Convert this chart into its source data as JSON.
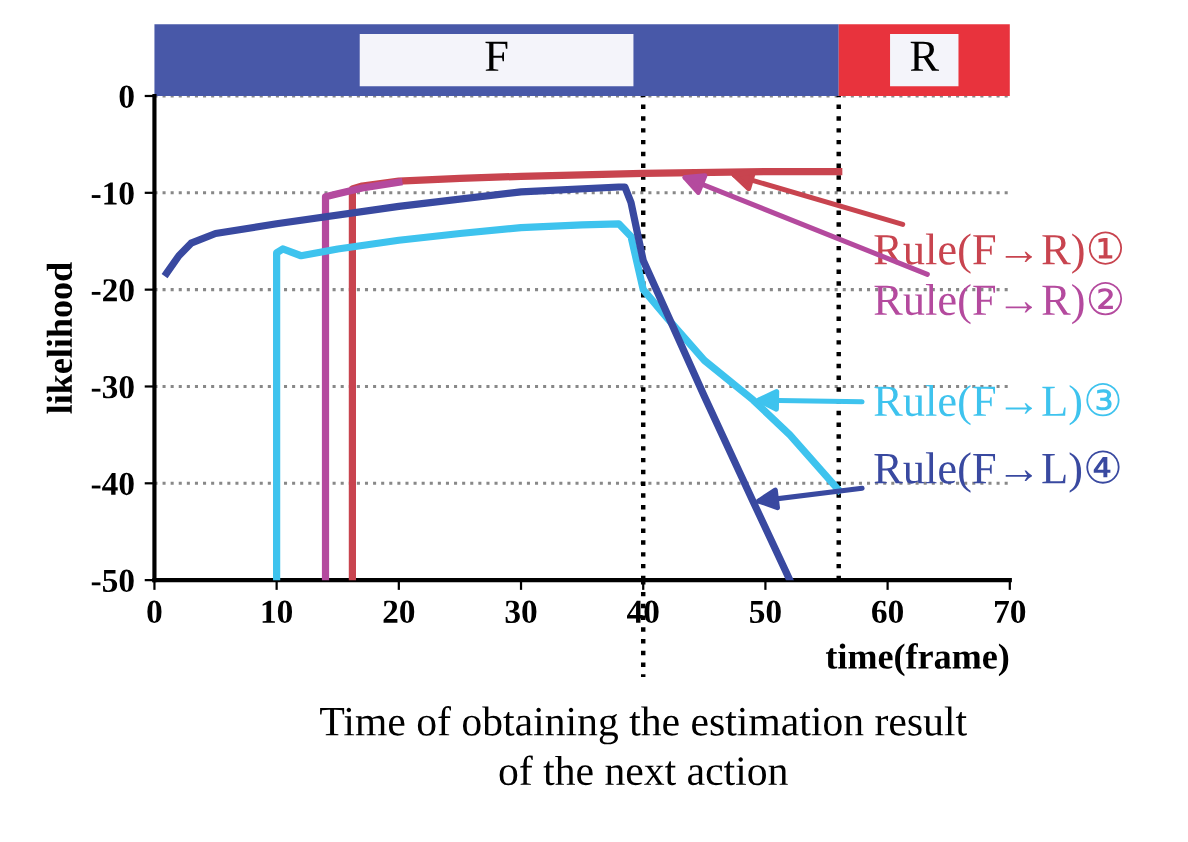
{
  "chart_data": {
    "type": "line",
    "xlabel": "time(frame)",
    "ylabel": "likelihood",
    "xlim": [
      0,
      70
    ],
    "ylim": [
      -50,
      0
    ],
    "xticks": [
      0,
      10,
      20,
      30,
      40,
      50,
      60,
      70
    ],
    "yticks": [
      0,
      -10,
      -20,
      -30,
      -40,
      -50
    ],
    "grid": "y",
    "line_style": "solid",
    "marker": "none",
    "series": [
      {
        "color": "#c8444f",
        "x": [
          16.2,
          16.2,
          17,
          20,
          25,
          30,
          40,
          50,
          56
        ],
        "values": [
          -50,
          -9.6,
          -9.3,
          -8.8,
          -8.5,
          -8.3,
          -8.0,
          -7.8,
          -7.8
        ]
      },
      {
        "color": "#b44a9e",
        "x": [
          14,
          14,
          15,
          17,
          20
        ],
        "values": [
          -50,
          -10.4,
          -10.1,
          -9.5,
          -8.9
        ]
      },
      {
        "color": "#3ec3ee",
        "x": [
          10,
          10,
          10.5,
          12,
          15,
          20,
          25,
          30,
          35,
          38,
          39,
          40,
          42,
          45,
          49,
          52,
          56
        ],
        "values": [
          -50,
          -16.2,
          -15.8,
          -16.5,
          -15.8,
          -14.9,
          -14.2,
          -13.6,
          -13.3,
          -13.2,
          -14.5,
          -20,
          -23,
          -27.3,
          -31.4,
          -35,
          -40.7
        ]
      },
      {
        "color": "#3949a0",
        "x": [
          1,
          2,
          3,
          5,
          10,
          20,
          30,
          38,
          38.5,
          39,
          40,
          45,
          49,
          52
        ],
        "values": [
          -18.3,
          -16.5,
          -15.2,
          -14.2,
          -13.2,
          -11.4,
          -9.9,
          -9.4,
          -9.4,
          -11,
          -17,
          -31,
          -41.9,
          -50
        ]
      }
    ],
    "ref_lines": [
      {
        "axis": "x",
        "value": 40,
        "label": "Time of obtaining the estimation result\nof the next action",
        "color": "#000000",
        "line_style": "dotted"
      },
      {
        "axis": "x",
        "value": 56,
        "color": "#000000",
        "line_style": "dotted"
      }
    ],
    "annotations": [
      "F",
      "R",
      {
        "text": "Rule(F→R)①",
        "x": 47,
        "y": -8
      },
      {
        "text": "Rule(F→R)②",
        "x": 43,
        "y": -8.2
      },
      {
        "text": "Rule(F→L)③",
        "x": 49,
        "y": -31.4
      },
      {
        "text": "Rule(F→L)④",
        "x": 49,
        "y": -41.9
      }
    ]
  }
}
